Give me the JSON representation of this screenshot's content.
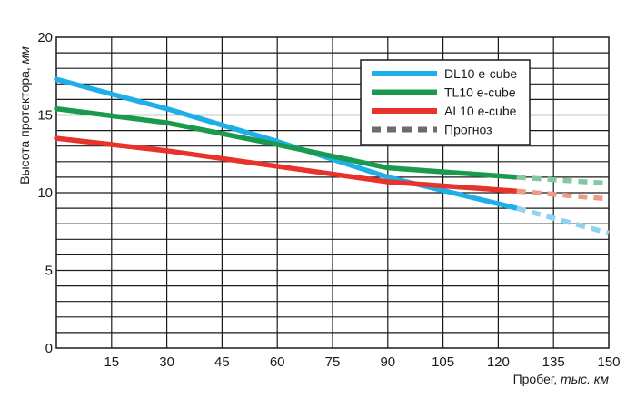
{
  "chart_data": {
    "type": "line",
    "xlabel": {
      "main": "Пробег, ",
      "unit": "тыс. км"
    },
    "ylabel": {
      "main": "Высота протектора, ",
      "unit": "мм"
    },
    "xlim": [
      0,
      150
    ],
    "ylim": [
      0,
      20
    ],
    "x_ticks": [
      15,
      30,
      45,
      60,
      75,
      90,
      105,
      120,
      135,
      150
    ],
    "y_ticks": [
      0,
      5,
      10,
      15,
      20
    ],
    "x_grid_step": 15,
    "y_grid_step": 1,
    "grid": true,
    "legend_position": "top-right",
    "series": [
      {
        "name": "DL10 e-cube",
        "color": "#1eaee8",
        "x": [
          0,
          30,
          60,
          90,
          125
        ],
        "y": [
          17.3,
          15.4,
          13.3,
          11.0,
          9.0
        ],
        "forecast": {
          "x": [
            125,
            150
          ],
          "y": [
            9.0,
            7.4
          ],
          "color": "#8fd3f2"
        }
      },
      {
        "name": "TL10 e-cube",
        "color": "#1a9a4c",
        "x": [
          0,
          30,
          60,
          90,
          125
        ],
        "y": [
          15.4,
          14.5,
          13.1,
          11.6,
          11.0
        ],
        "forecast": {
          "x": [
            125,
            150
          ],
          "y": [
            11.0,
            10.6
          ],
          "color": "#86c7a3"
        }
      },
      {
        "name": "AL10 e-cube",
        "color": "#e8322c",
        "x": [
          0,
          30,
          60,
          90,
          125
        ],
        "y": [
          13.5,
          12.7,
          11.7,
          10.7,
          10.1
        ],
        "forecast": {
          "x": [
            125,
            150
          ],
          "y": [
            10.1,
            9.6
          ],
          "color": "#ee9b83"
        }
      }
    ],
    "forecast_legend": {
      "name": "Прогноз",
      "color": "#6b6b6b"
    }
  }
}
